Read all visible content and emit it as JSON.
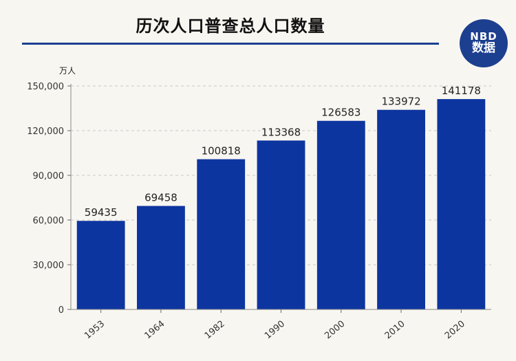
{
  "title": "历次人口普查总人口数量",
  "logo": {
    "top": "NBD",
    "bottom": "数据"
  },
  "colors": {
    "bar": "#0d35a0",
    "title_rule": "#1a3f91",
    "logo_bg": "#1c3f8f",
    "background": "#f8f6f1"
  },
  "chart_data": {
    "type": "bar",
    "categories": [
      "1953",
      "1964",
      "1982",
      "1990",
      "2000",
      "2010",
      "2020"
    ],
    "values": [
      59435,
      69458,
      100818,
      113368,
      126583,
      133972,
      141178
    ],
    "data_labels": [
      "59435",
      "69458",
      "100818",
      "113368",
      "126583",
      "133972",
      "141178"
    ],
    "title": "历次人口普查总人口数量",
    "unit": "万人",
    "ylim": [
      0,
      150000
    ],
    "yticks": [
      0,
      30000,
      60000,
      90000,
      120000,
      150000
    ],
    "ytick_labels": [
      "0",
      "30,000",
      "60,000",
      "90,000",
      "120,000",
      "150,000"
    ],
    "grid": true,
    "legend": "none"
  }
}
